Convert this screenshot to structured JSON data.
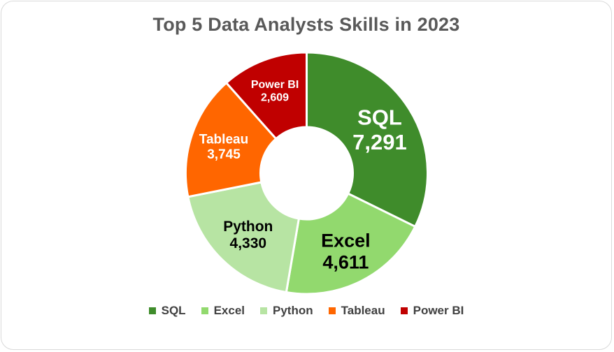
{
  "chart_data": {
    "type": "pie",
    "title": "Top 5 Data Analysts Skills in 2023",
    "categories": [
      "SQL",
      "Excel",
      "Python",
      "Tableau",
      "Power BI"
    ],
    "values": [
      7291,
      4611,
      4330,
      3745,
      2609
    ],
    "value_labels": [
      "7,291",
      "4,611",
      "4,330",
      "3,745",
      "2,609"
    ],
    "colors": [
      "#3f8c2b",
      "#92d96e",
      "#b7e4a3",
      "#ff6600",
      "#c00000"
    ],
    "label_colors": [
      "#ffffff",
      "#000000",
      "#000000",
      "#ffffff",
      "#ffffff"
    ],
    "legend_position": "bottom",
    "donut": true
  }
}
